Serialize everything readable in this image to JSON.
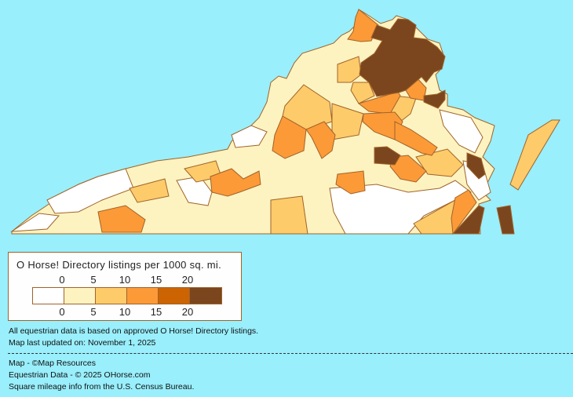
{
  "legend": {
    "title": "O Horse! Directory listings per 1000 sq. mi.",
    "ticks_top": [
      "0",
      "5",
      "10",
      "15",
      "20"
    ],
    "ticks_bottom": [
      "0",
      "5",
      "10",
      "15",
      "20"
    ],
    "bins": [
      {
        "range": "0",
        "color": "#FFFFFF"
      },
      {
        "range": "0-5",
        "color": "#FDF3C0"
      },
      {
        "range": "5-10",
        "color": "#FDCB6A"
      },
      {
        "range": "10-15",
        "color": "#FC9A38"
      },
      {
        "range": "15-20",
        "color": "#CC6404"
      },
      {
        "range": "20+",
        "color": "#7B461D"
      }
    ]
  },
  "map": {
    "border_color": "#A0632A",
    "background": "#99EFFC"
  },
  "notes": {
    "basis": "All equestrian data is based on approved O Horse! Directory listings.",
    "updated": "Map last updated on: November 1, 2025"
  },
  "credits": {
    "map": "Map - ©Map Resources",
    "data": "Equestrian Data - © 2025 OHorse.com",
    "census": "Square mileage info from the U.S. Census Bureau."
  }
}
